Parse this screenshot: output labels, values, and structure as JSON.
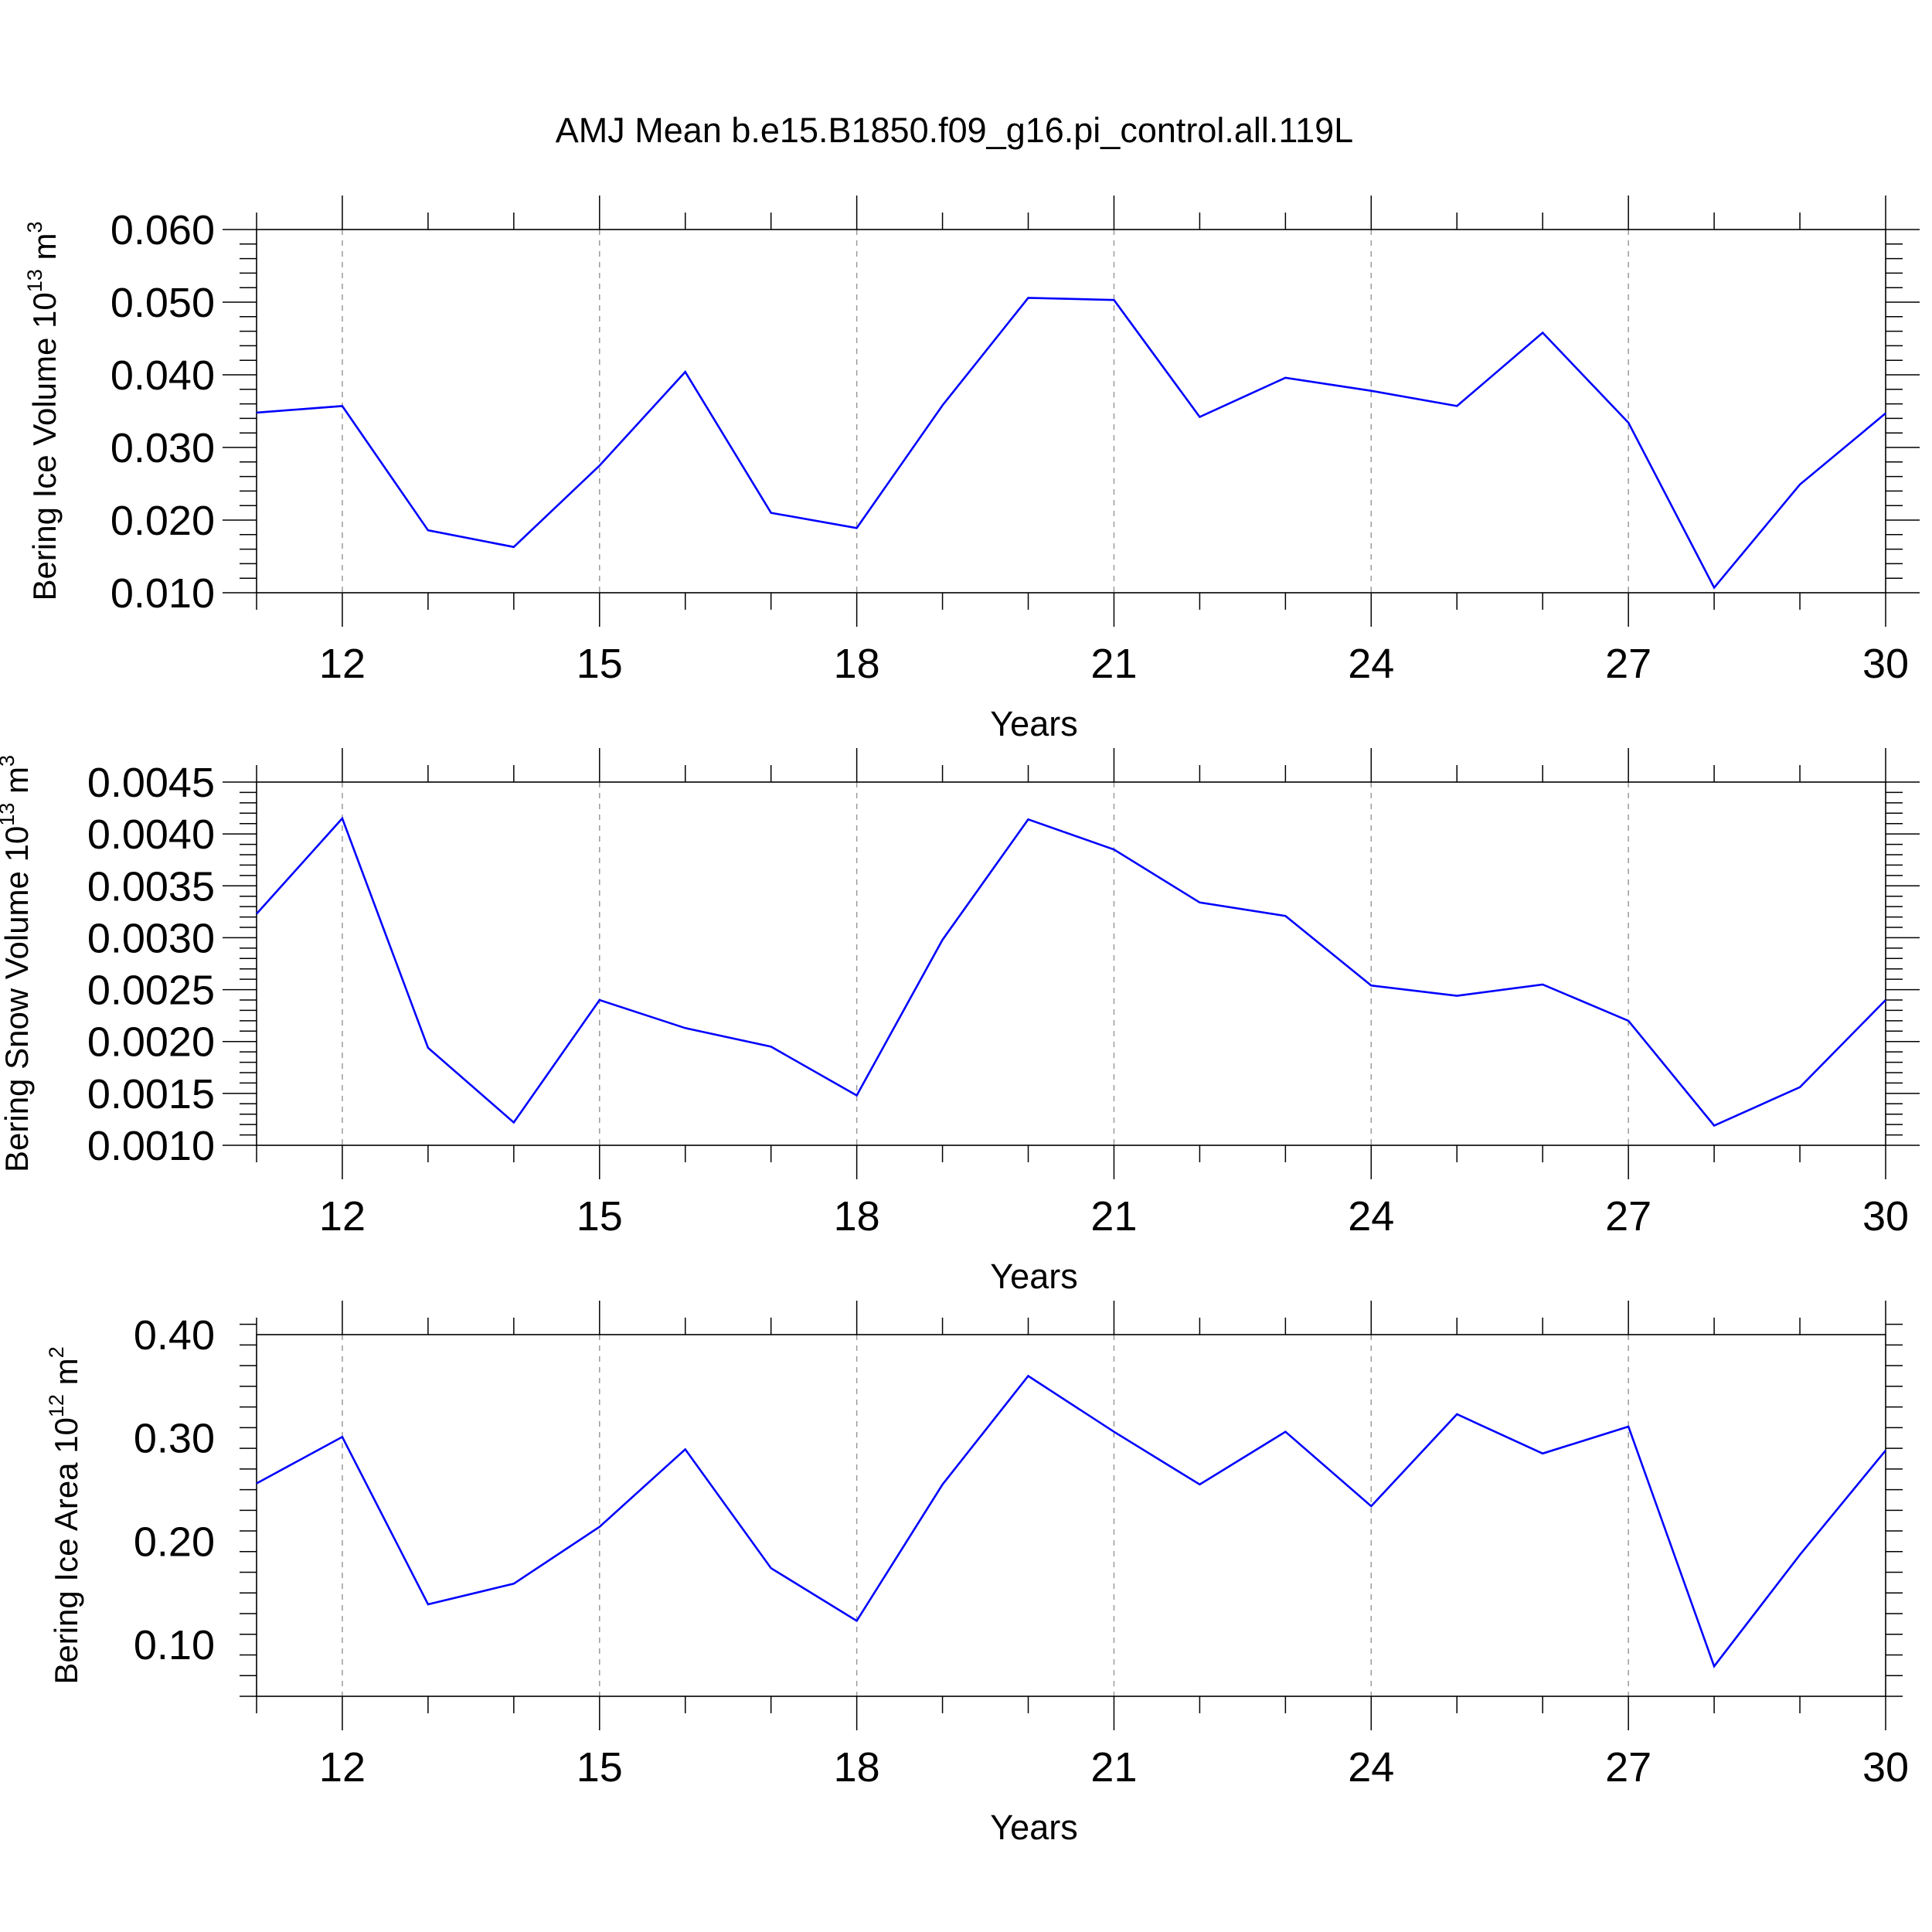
{
  "figure": {
    "title": "AMJ Mean b.e15.B1850.f09_g16.pi_control.all.119L",
    "line_color": "#0000ff",
    "axis_color": "#000000",
    "grid_color": "#9a9a9a"
  },
  "chart_data": [
    {
      "type": "line",
      "title": "AMJ Mean b.e15.B1850.f09_g16.pi_control.all.119L",
      "xlabel": "Years",
      "ylabel": "Bering Ice Volume 10",
      "ylabel_exp": "13",
      "ylabel_unit": " m",
      "ylabel_unit_exp": "3",
      "xlim": [
        11,
        30
      ],
      "ylim": [
        0.01,
        0.06
      ],
      "x_ticks": [
        12,
        15,
        18,
        21,
        24,
        27,
        30
      ],
      "x_tick_labels": [
        "12",
        "15",
        "18",
        "21",
        "24",
        "27",
        "30"
      ],
      "x_minor_step": 1,
      "y_ticks": [
        0.01,
        0.02,
        0.03,
        0.04,
        0.05,
        0.06
      ],
      "y_tick_labels": [
        "0.010",
        "0.020",
        "0.030",
        "0.040",
        "0.050",
        "0.060"
      ],
      "y_minor_step": 0.002,
      "grid": "vertical dashed at major x ticks",
      "x": [
        11,
        12,
        13,
        14,
        15,
        16,
        17,
        18,
        19,
        20,
        21,
        22,
        23,
        24,
        25,
        26,
        27,
        28,
        29,
        30
      ],
      "series": [
        {
          "values": [
            0.0348,
            0.0357,
            0.0186,
            0.0163,
            0.0275,
            0.0404,
            0.021,
            0.0189,
            0.0358,
            0.0506,
            0.0503,
            0.0342,
            0.0396,
            0.0378,
            0.0357,
            0.0458,
            0.0334,
            0.0107,
            0.0249,
            0.0347
          ]
        }
      ]
    },
    {
      "type": "line",
      "xlabel": "Years",
      "ylabel": "Bering Snow Volume 10",
      "ylabel_exp": "13",
      "ylabel_unit": " m",
      "ylabel_unit_exp": "3",
      "xlim": [
        11,
        30
      ],
      "ylim": [
        0.001,
        0.0045
      ],
      "x_ticks": [
        12,
        15,
        18,
        21,
        24,
        27,
        30
      ],
      "x_tick_labels": [
        "12",
        "15",
        "18",
        "21",
        "24",
        "27",
        "30"
      ],
      "x_minor_step": 1,
      "y_ticks": [
        0.001,
        0.0015,
        0.002,
        0.0025,
        0.003,
        0.0035,
        0.004,
        0.0045
      ],
      "y_tick_labels": [
        "0.0010",
        "0.0015",
        "0.0020",
        "0.0025",
        "0.0030",
        "0.0035",
        "0.0040",
        "0.0045"
      ],
      "y_minor_step": 0.0001,
      "grid": "vertical dashed at major x ticks",
      "x": [
        11,
        12,
        13,
        14,
        15,
        16,
        17,
        18,
        19,
        20,
        21,
        22,
        23,
        24,
        25,
        26,
        27,
        28,
        29,
        30
      ],
      "series": [
        {
          "values": [
            0.00323,
            0.00415,
            0.00194,
            0.00122,
            0.0024,
            0.00213,
            0.00195,
            0.00148,
            0.00298,
            0.00414,
            0.00385,
            0.00334,
            0.00321,
            0.00254,
            0.00244,
            0.00255,
            0.0022,
            0.00119,
            0.00156,
            0.0024
          ]
        }
      ]
    },
    {
      "type": "line",
      "xlabel": "Years",
      "ylabel": "Bering Ice Area 10",
      "ylabel_exp": "12",
      "ylabel_unit": " m",
      "ylabel_unit_exp": "2",
      "xlim": [
        11,
        30
      ],
      "ylim": [
        0.05,
        0.4
      ],
      "x_ticks": [
        12,
        15,
        18,
        21,
        24,
        27,
        30
      ],
      "x_tick_labels": [
        "12",
        "15",
        "18",
        "21",
        "24",
        "27",
        "30"
      ],
      "x_minor_step": 1,
      "y_ticks": [
        0.1,
        0.2,
        0.3,
        0.4
      ],
      "y_tick_labels": [
        "0.10",
        "0.20",
        "0.30",
        "0.40"
      ],
      "y_minor_step": 0.02,
      "grid": "vertical dashed at major x ticks",
      "x": [
        11,
        12,
        13,
        14,
        15,
        16,
        17,
        18,
        19,
        20,
        21,
        22,
        23,
        24,
        25,
        26,
        27,
        28,
        29,
        30
      ],
      "series": [
        {
          "values": [
            0.256,
            0.301,
            0.139,
            0.159,
            0.214,
            0.289,
            0.174,
            0.123,
            0.255,
            0.36,
            0.306,
            0.255,
            0.306,
            0.234,
            0.323,
            0.285,
            0.311,
            0.079,
            0.187,
            0.288
          ]
        }
      ]
    }
  ]
}
